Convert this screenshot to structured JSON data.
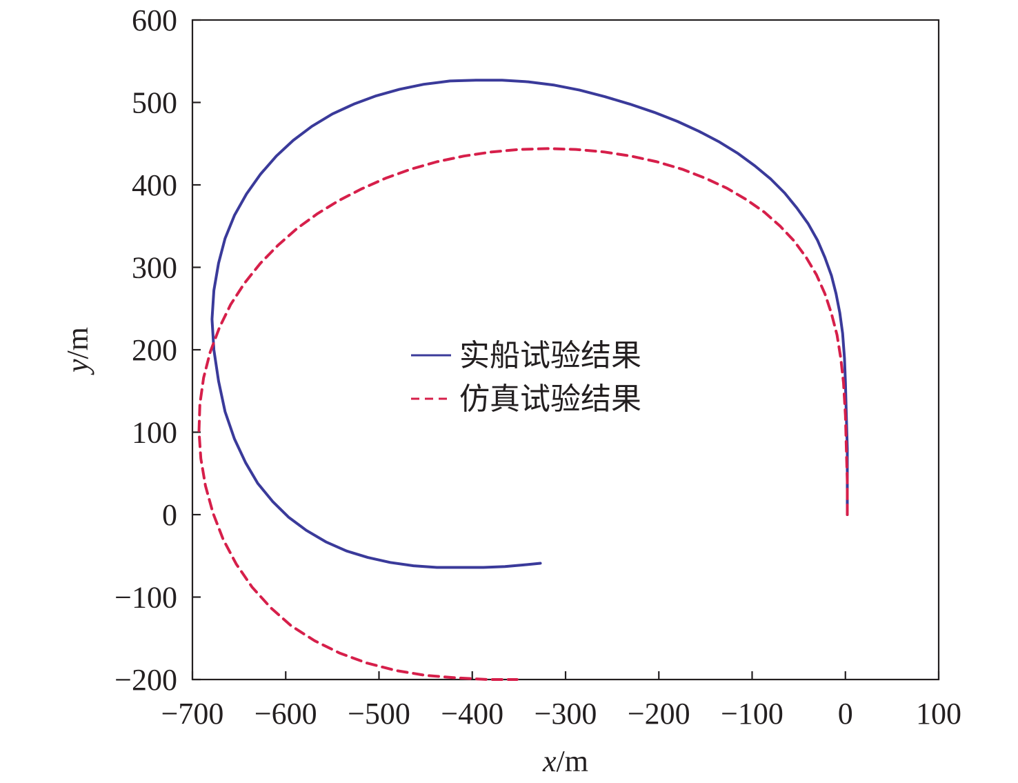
{
  "chart_data": {
    "type": "line",
    "title": "",
    "xlabel": {
      "var": "x",
      "unit": "/m"
    },
    "ylabel": {
      "var": "y",
      "unit": "/m"
    },
    "xlim": [
      -700,
      100
    ],
    "ylim": [
      -200,
      600
    ],
    "x_ticks": [
      -700,
      -600,
      -500,
      -400,
      -300,
      -200,
      -100,
      0,
      100
    ],
    "y_ticks": [
      -200,
      -100,
      0,
      100,
      200,
      300,
      400,
      500,
      600
    ],
    "x_tick_labels": [
      "−700",
      "−600",
      "−500",
      "−400",
      "−300",
      "−200",
      "−100",
      "0",
      "100"
    ],
    "y_tick_labels": [
      "−200",
      "−100",
      "0",
      "100",
      "200",
      "300",
      "400",
      "500",
      "600"
    ],
    "grid": false,
    "legend_position": "center",
    "series": [
      {
        "name": "实船试验结果",
        "color": "#3a3a9a",
        "style": "solid",
        "x": [
          2,
          2,
          2,
          1,
          0,
          -1,
          -3,
          -6,
          -10,
          -15,
          -22,
          -30,
          -40,
          -52,
          -65,
          -80,
          -97,
          -115,
          -135,
          -157,
          -180,
          -205,
          -231,
          -258,
          -285,
          -312,
          -340,
          -368,
          -396,
          -424,
          -452,
          -478,
          -503,
          -527,
          -550,
          -572,
          -592,
          -610,
          -627,
          -642,
          -655,
          -665,
          -672,
          -677,
          -679,
          -677,
          -672,
          -665,
          -655,
          -643,
          -630,
          -614,
          -597,
          -578,
          -557,
          -535,
          -512,
          -488,
          -463,
          -438,
          -412,
          -388,
          -365,
          -345,
          -327
        ],
        "y": [
          0,
          40,
          80,
          120,
          160,
          190,
          220,
          245,
          268,
          290,
          312,
          333,
          353,
          372,
          390,
          407,
          423,
          438,
          452,
          465,
          477,
          488,
          498,
          507,
          515,
          521,
          525,
          527,
          527,
          526,
          522,
          516,
          508,
          498,
          486,
          471,
          454,
          435,
          413,
          389,
          363,
          335,
          305,
          272,
          237,
          200,
          162,
          125,
          92,
          63,
          38,
          16,
          -3,
          -19,
          -33,
          -44,
          -52,
          -58,
          -62,
          -64,
          -64,
          -64,
          -63,
          -61,
          -59
        ]
      },
      {
        "name": "仿真试验结果",
        "color": "#d61f4a",
        "style": "dashed",
        "x": [
          2,
          2,
          1,
          0,
          -2,
          -5,
          -9,
          -15,
          -22,
          -31,
          -42,
          -55,
          -70,
          -87,
          -106,
          -127,
          -150,
          -175,
          -202,
          -230,
          -259,
          -289,
          -319,
          -349,
          -379,
          -409,
          -438,
          -466,
          -493,
          -519,
          -543,
          -566,
          -588,
          -608,
          -627,
          -644,
          -659,
          -671,
          -681,
          -688,
          -692,
          -693,
          -691,
          -686,
          -678,
          -667,
          -653,
          -636,
          -616,
          -594,
          -569,
          -542,
          -513,
          -482,
          -450,
          -417,
          -384,
          -352
        ],
        "y": [
          0,
          40,
          80,
          120,
          160,
          190,
          218,
          244,
          268,
          291,
          312,
          332,
          350,
          367,
          382,
          396,
          408,
          419,
          428,
          435,
          440,
          443,
          444,
          443,
          440,
          435,
          428,
          419,
          408,
          395,
          381,
          365,
          347,
          327,
          305,
          281,
          255,
          227,
          197,
          166,
          134,
          101,
          68,
          35,
          2,
          -30,
          -60,
          -88,
          -113,
          -135,
          -153,
          -168,
          -180,
          -189,
          -195,
          -198,
          -200,
          -200
        ]
      }
    ]
  }
}
